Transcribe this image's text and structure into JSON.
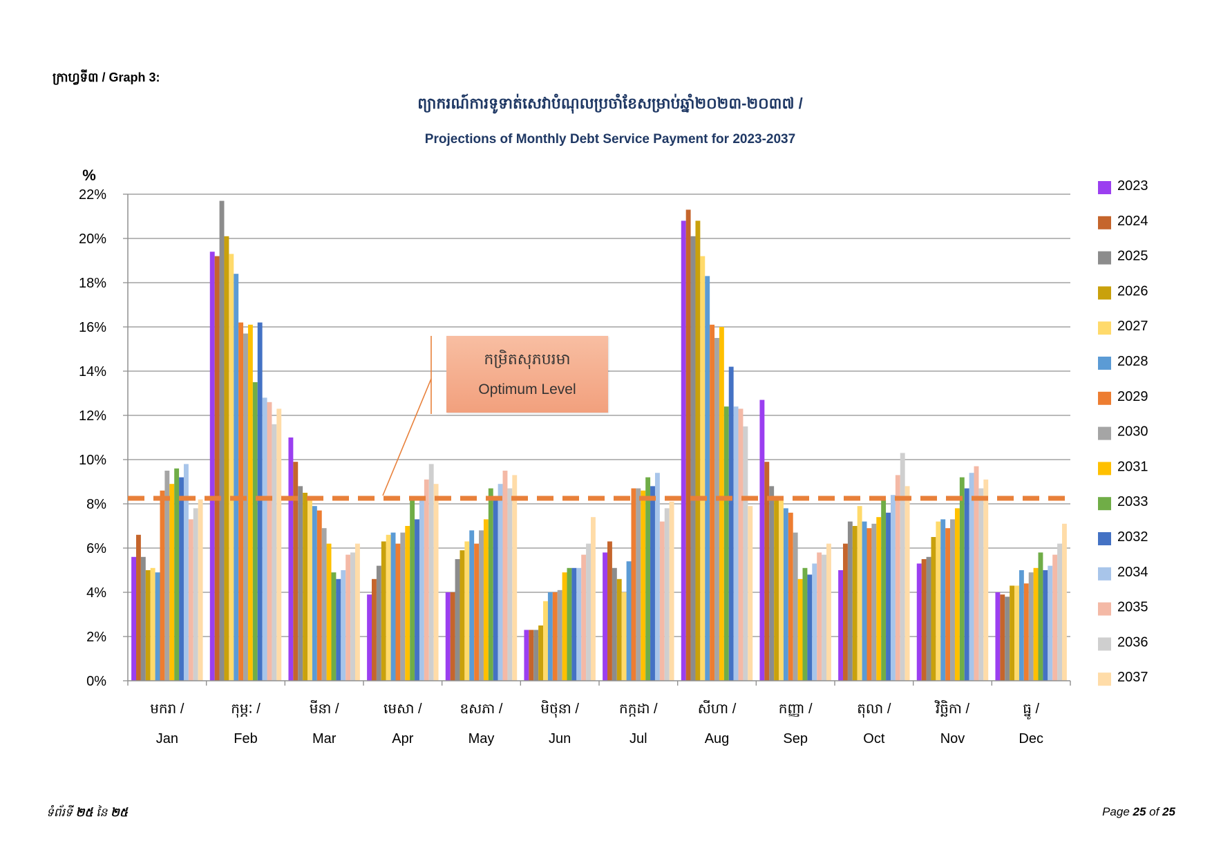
{
  "page": {
    "graph_label": "ក្រាហ្វទី៣ / Graph 3:",
    "footer_left": {
      "prefix": "ទំព័រទី ",
      "page": "២៥",
      "mid": " នៃ ",
      "total": "២៥"
    },
    "footer_right": {
      "prefix": "Page ",
      "page": "25",
      "mid": " of ",
      "total": "25"
    }
  },
  "chart_data": {
    "type": "bar",
    "title": "ព្យាករណ៍ការទូទាត់សេវាបំណុលប្រចាំខែសម្រាប់ឆ្នាំ២០២៣-២០៣៧ /",
    "subtitle": "Projections of Monthly Debt Service Payment for 2023-2037",
    "ylabel": "%",
    "xlabel": "",
    "ylim": [
      0,
      22
    ],
    "y_tick_labels": [
      "0%",
      "2%",
      "4%",
      "6%",
      "8%",
      "10%",
      "12%",
      "14%",
      "16%",
      "18%",
      "20%",
      "22%"
    ],
    "categories": [
      "Jan",
      "Feb",
      "Mar",
      "Apr",
      "May",
      "Jun",
      "Jul",
      "Aug",
      "Sep",
      "Oct",
      "Nov",
      "Dec"
    ],
    "categories_km": [
      "មករា /",
      "កុម្ភៈ /",
      "មីនា /",
      "មេសា /",
      "ឧសភា /",
      "មិថុនា /",
      "កក្កដា /",
      "សីហា /",
      "កញ្ញា /",
      "តុលា /",
      "វិច្ឆិកា /",
      "ធ្នូ /"
    ],
    "grid": true,
    "legend_position": "right",
    "series": [
      {
        "name": "2023",
        "color": "#9B3FF0",
        "values": [
          5.6,
          19.4,
          11.0,
          3.9,
          4.0,
          2.3,
          5.8,
          20.8,
          12.7,
          5.0,
          5.3,
          4.0
        ]
      },
      {
        "name": "2024",
        "color": "#C5652C",
        "values": [
          6.6,
          19.2,
          9.9,
          4.6,
          4.0,
          2.3,
          6.3,
          21.3,
          9.9,
          6.2,
          5.5,
          3.9
        ]
      },
      {
        "name": "2025",
        "color": "#8C8C8C",
        "values": [
          5.6,
          21.7,
          8.8,
          5.2,
          5.5,
          2.3,
          5.1,
          20.1,
          8.8,
          7.2,
          5.6,
          3.8
        ]
      },
      {
        "name": "2026",
        "color": "#C9A10C",
        "values": [
          5.0,
          20.1,
          8.5,
          6.3,
          5.9,
          2.5,
          4.6,
          20.8,
          8.3,
          7.0,
          6.5,
          4.3
        ]
      },
      {
        "name": "2027",
        "color": "#FFDA6B",
        "values": [
          5.1,
          19.3,
          8.2,
          6.6,
          6.3,
          3.6,
          4.0,
          19.2,
          8.2,
          7.9,
          7.2,
          4.3
        ]
      },
      {
        "name": "2028",
        "color": "#5B9BD5",
        "values": [
          4.9,
          18.4,
          7.9,
          6.7,
          6.8,
          4.0,
          5.4,
          18.3,
          7.8,
          7.2,
          7.3,
          5.0
        ]
      },
      {
        "name": "2029",
        "color": "#ED7D31",
        "values": [
          8.6,
          16.2,
          7.7,
          6.2,
          6.2,
          4.0,
          8.7,
          16.1,
          7.6,
          6.9,
          6.9,
          4.4
        ]
      },
      {
        "name": "2030",
        "color": "#A5A5A5",
        "values": [
          9.5,
          15.7,
          6.9,
          6.7,
          6.8,
          4.1,
          8.7,
          15.5,
          6.7,
          7.1,
          7.3,
          4.9
        ]
      },
      {
        "name": "2031",
        "color": "#FFC000",
        "values": [
          8.9,
          16.1,
          6.2,
          7.0,
          7.3,
          4.9,
          8.6,
          16.0,
          4.6,
          7.4,
          7.8,
          5.1
        ]
      },
      {
        "name": "2033",
        "color": "#70AD47",
        "values": [
          9.6,
          13.5,
          4.9,
          8.2,
          8.7,
          5.1,
          9.2,
          12.4,
          5.1,
          8.2,
          9.2,
          5.8
        ]
      },
      {
        "name": "2032",
        "color": "#4472C4",
        "values": [
          9.2,
          16.2,
          4.6,
          7.3,
          8.2,
          5.1,
          8.8,
          14.2,
          4.8,
          7.6,
          8.7,
          5.0
        ]
      },
      {
        "name": "2034",
        "color": "#A8C5EA",
        "values": [
          9.8,
          12.8,
          5.0,
          8.3,
          8.9,
          5.1,
          9.4,
          12.4,
          5.3,
          8.4,
          9.4,
          5.2
        ]
      },
      {
        "name": "2035",
        "color": "#F4B9A6",
        "values": [
          7.3,
          12.6,
          5.7,
          9.1,
          9.5,
          5.7,
          7.2,
          12.3,
          5.8,
          9.3,
          9.7,
          5.7
        ]
      },
      {
        "name": "2036",
        "color": "#CFCFCF",
        "values": [
          7.8,
          11.6,
          5.8,
          9.8,
          8.7,
          6.2,
          7.8,
          11.5,
          5.7,
          10.3,
          8.7,
          6.2
        ]
      },
      {
        "name": "2037",
        "color": "#FFDCA8",
        "values": [
          8.2,
          12.3,
          6.2,
          8.9,
          9.3,
          7.4,
          8.1,
          7.9,
          6.2,
          8.8,
          9.1,
          7.1
        ]
      }
    ],
    "reference_line": {
      "label_km": "កម្រិតសុភបរមា",
      "label_en": "Optimum Level",
      "value": 8.25,
      "color": "#E8803A",
      "style": "dashed"
    }
  }
}
